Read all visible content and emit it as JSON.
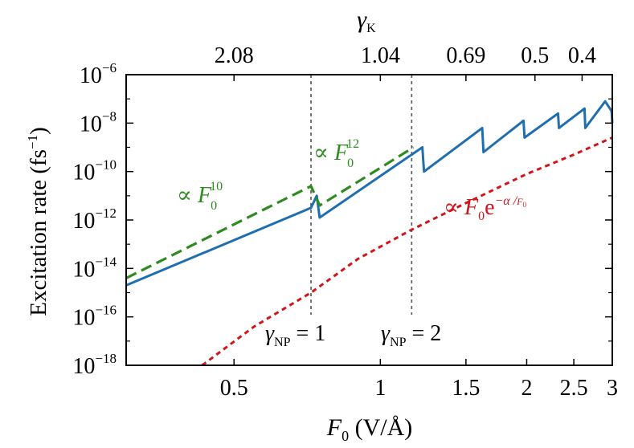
{
  "chart_data": {
    "type": "line",
    "x_scale": "log",
    "y_scale": "log",
    "xlim": [
      0.3,
      3.0
    ],
    "ylim_exp": [
      -18,
      -6
    ],
    "xlabel": {
      "main": "F",
      "sub": "0",
      "rest": " (V/Å)"
    },
    "ylabel": {
      "main": "Excitation rate (fs",
      "sup": "−1",
      "end": ")"
    },
    "top_axis_label": {
      "main": "γ",
      "sub": "K"
    },
    "x_ticks": [
      {
        "value": 0.5,
        "label": "0.5"
      },
      {
        "value": 1.0,
        "label": "1"
      },
      {
        "value": 1.5,
        "label": "1.5"
      },
      {
        "value": 2.0,
        "label": "2"
      },
      {
        "value": 2.5,
        "label": "2.5"
      },
      {
        "value": 3.0,
        "label": "3"
      }
    ],
    "y_ticks": [
      {
        "exp": -18,
        "base": "10",
        "sup": "−18"
      },
      {
        "exp": -16,
        "base": "10",
        "sup": "−16"
      },
      {
        "exp": -14,
        "base": "10",
        "sup": "−14"
      },
      {
        "exp": -12,
        "base": "10",
        "sup": "−12"
      },
      {
        "exp": -10,
        "base": "10",
        "sup": "−10"
      },
      {
        "exp": -8,
        "base": "10",
        "sup": "−8"
      },
      {
        "exp": -6,
        "base": "10",
        "sup": "−6"
      }
    ],
    "top_ticks": [
      {
        "value": 0.5,
        "label": "2.08"
      },
      {
        "value": 1.0,
        "label": "1.04"
      },
      {
        "value": 1.5,
        "label": "0.69"
      },
      {
        "value": 2.08,
        "label": "0.5"
      },
      {
        "value": 2.6,
        "label": "0.4"
      }
    ],
    "vlines": [
      {
        "x": 0.72,
        "label_main": "γ",
        "label_sub": "NP",
        "label_rest": " = 1"
      },
      {
        "x": 1.16,
        "label_main": "γ",
        "label_sub": "NP",
        "label_rest": " = 2"
      }
    ],
    "series": [
      {
        "style": "solid",
        "color": "#1f6fb0",
        "x": [
          0.3,
          0.72,
          0.74,
          0.75,
          1.16,
          1.22,
          1.23,
          1.62,
          1.63,
          1.97,
          1.98,
          2.32,
          2.33,
          2.63,
          2.64,
          2.9,
          2.99,
          3.0
        ],
        "logy": [
          -14.7,
          -11.5,
          -11.0,
          -11.9,
          -9.3,
          -9.0,
          -10.0,
          -8.2,
          -9.2,
          -7.9,
          -8.6,
          -7.6,
          -8.2,
          -7.4,
          -8.2,
          -7.1,
          -7.5,
          -8.0
        ]
      },
      {
        "style": "dashed",
        "color": "#2e8b20",
        "x": [
          0.3,
          0.72,
          0.75,
          1.17
        ],
        "logy": [
          -14.4,
          -10.6,
          -11.4,
          -9.0
        ]
      },
      {
        "style": "dotted",
        "color": "#d0161b",
        "x": [
          0.43,
          0.55,
          0.72,
          0.9,
          1.16,
          1.5,
          2.0,
          2.5,
          3.0
        ],
        "logy": [
          -18.0,
          -16.4,
          -15.0,
          -13.6,
          -12.4,
          -11.3,
          -10.1,
          -9.3,
          -8.6
        ]
      }
    ],
    "annotations": [
      {
        "prefix": "∝ ",
        "main": "F",
        "sub": "0",
        "sup": "10",
        "color": "#2e8b20"
      },
      {
        "prefix": "∝ ",
        "main": "F",
        "sub": "0",
        "sup": "12",
        "color": "#2e8b20"
      },
      {
        "prefix": "∝ ",
        "main": "F",
        "sub": "0",
        "rest": "e",
        "sup": "−α /",
        "supsub_main": "F",
        "supsub_sub": "0",
        "color": "#d0161b"
      }
    ]
  }
}
